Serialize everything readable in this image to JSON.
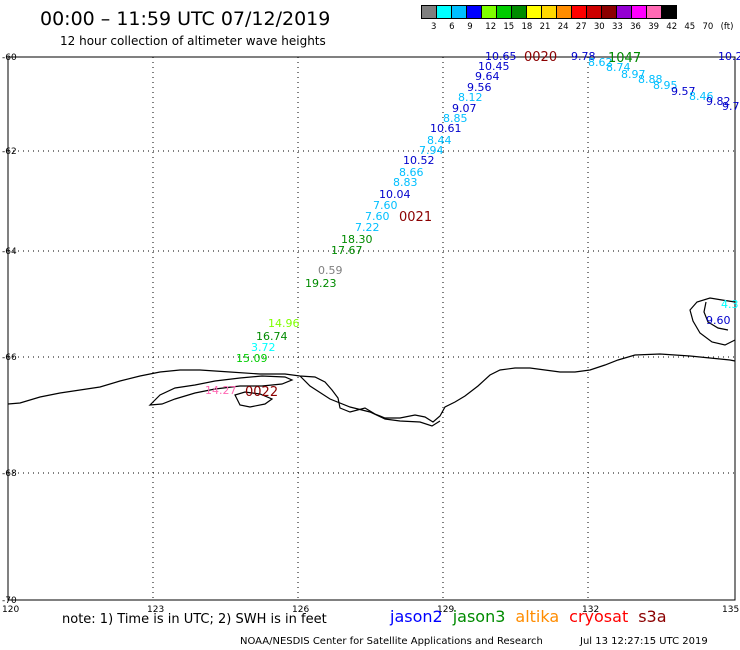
{
  "title": "00:00 – 11:59 UTC 07/12/2019",
  "subtitle": "12 hour collection of altimeter wave heights",
  "scale": {
    "colors": [
      "#7f7f7f",
      "#00ffff",
      "#00bfff",
      "#0000ff",
      "#7fff00",
      "#00cd00",
      "#008b00",
      "#ffff00",
      "#ffd700",
      "#ff8c00",
      "#ff0000",
      "#cd0000",
      "#8b0000",
      "#9400d3",
      "#ff00ff",
      "#ff69b4",
      "#000000"
    ],
    "labels": [
      "3",
      "6",
      "9",
      "12",
      "15",
      "18",
      "21",
      "24",
      "27",
      "30",
      "33",
      "36",
      "39",
      "42",
      "45",
      "70",
      "(ft)"
    ]
  },
  "axes": {
    "lon_ticks": [
      "120",
      "123",
      "126",
      "129",
      "132",
      "135"
    ],
    "lat_ticks": [
      "-60",
      "-62",
      "-64",
      "-66",
      "-68",
      "-70"
    ]
  },
  "wave_labels": [
    {
      "text": "10.65",
      "color": "#0000cc"
    },
    {
      "text": "10.45",
      "color": "#0000cc"
    },
    {
      "text": "9.64",
      "color": "#0000cc"
    },
    {
      "text": "9.56",
      "color": "#0000cc"
    },
    {
      "text": "8.12",
      "color": "#00bfff"
    },
    {
      "text": "9.07",
      "color": "#0000cc"
    },
    {
      "text": "8.85",
      "color": "#00bfff"
    },
    {
      "text": "10.61",
      "color": "#0000cc"
    },
    {
      "text": "8.44",
      "color": "#00bfff"
    },
    {
      "text": "7.94",
      "color": "#00bfff"
    },
    {
      "text": "10.52",
      "color": "#0000cc"
    },
    {
      "text": "8.66",
      "color": "#00bfff"
    },
    {
      "text": "8.83",
      "color": "#00bfff"
    },
    {
      "text": "10.04",
      "color": "#0000cc"
    },
    {
      "text": "7.60",
      "color": "#00bfff"
    },
    {
      "text": "7.60",
      "color": "#00bfff"
    },
    {
      "text": "7.22",
      "color": "#00bfff"
    },
    {
      "text": "18.30",
      "color": "#008b00"
    },
    {
      "text": "17.67",
      "color": "#008b00"
    },
    {
      "text": "0.59",
      "color": "#7f7f7f"
    },
    {
      "text": "19.23",
      "color": "#008b00"
    },
    {
      "text": "14.96",
      "color": "#7fff00"
    },
    {
      "text": "16.74",
      "color": "#008b00"
    },
    {
      "text": "3.72",
      "color": "#00ffff"
    },
    {
      "text": "15.09",
      "color": "#00cd00"
    },
    {
      "text": "9.78",
      "color": "#0000cc"
    },
    {
      "text": "8.62",
      "color": "#00bfff"
    },
    {
      "text": "8.74",
      "color": "#00bfff"
    },
    {
      "text": "8.97",
      "color": "#00bfff"
    },
    {
      "text": "8.88",
      "color": "#00bfff"
    },
    {
      "text": "8.95",
      "color": "#00bfff"
    },
    {
      "text": "9.57",
      "color": "#0000cc"
    },
    {
      "text": "8.46",
      "color": "#00bfff"
    },
    {
      "text": "9.82",
      "color": "#0000cc"
    },
    {
      "text": "9.7",
      "color": "#0000cc"
    },
    {
      "text": "10.2",
      "color": "#0000cc"
    },
    {
      "text": "4.3",
      "color": "#00ffff"
    },
    {
      "text": "9.60",
      "color": "#0000cc"
    },
    {
      "text": "14.27",
      "color": "#ff69b4"
    }
  ],
  "time_labels": [
    {
      "text": "0020",
      "color": "#8b0000"
    },
    {
      "text": "1047",
      "color": "#008b00"
    },
    {
      "text": "0021",
      "color": "#8b0000"
    },
    {
      "text": "0022",
      "color": "#8b0000"
    }
  ],
  "note": "note:  1) Time is in UTC;  2) SWH is in feet",
  "satellites": [
    {
      "name": "jason2",
      "color": "#0000ff"
    },
    {
      "name": "jason3",
      "color": "#008b00"
    },
    {
      "name": "altika",
      "color": "#ff8c00"
    },
    {
      "name": "cryosat",
      "color": "#ff0000"
    },
    {
      "name": "s3a",
      "color": "#8b0000"
    }
  ],
  "credit": "NOAA/NESDIS Center for Satellite Applications and Research",
  "timestamp": "Jul 13 12:27:15 UTC 2019"
}
